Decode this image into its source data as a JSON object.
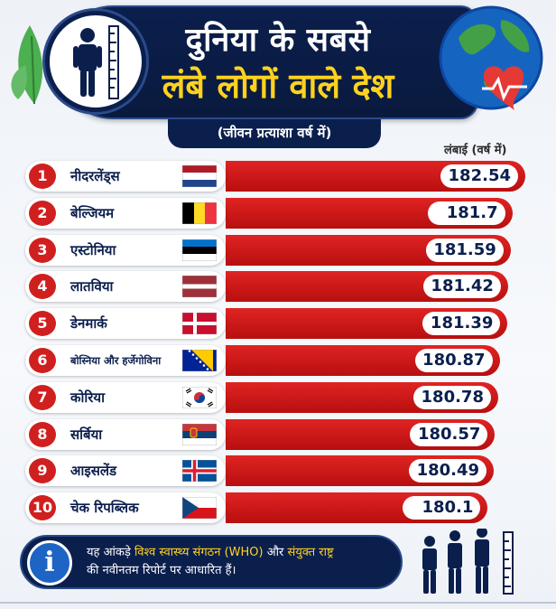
{
  "header": {
    "title_line1": "दुनिया के सबसे",
    "title_line2": "लंबे लोगों वाले देश",
    "subtitle": "(जीवन प्रत्याशा वर्ष में)",
    "column_label": "लंबाई (वर्ष में)"
  },
  "chart_data": {
    "type": "bar",
    "orientation": "horizontal",
    "categories": [
      "नीदरलेंड्स",
      "बेल्जियम",
      "एस्टोनिया",
      "लातविया",
      "डेनमार्क",
      "बोस्निया और हर्जेगोविना",
      "कोरिया",
      "सर्बिया",
      "आइसलेंड",
      "चेक रिपब्लिक"
    ],
    "ranks": [
      "1",
      "2",
      "3",
      "4",
      "5",
      "6",
      "7",
      "8",
      "9",
      "10"
    ],
    "values": [
      182.54,
      181.7,
      181.59,
      181.42,
      181.39,
      180.87,
      180.78,
      180.57,
      180.49,
      180.1
    ],
    "value_labels": [
      "182.54",
      "181.7",
      "181.59",
      "181.42",
      "181.39",
      "180.87",
      "180.78",
      "180.57",
      "180.49",
      "180.1"
    ],
    "ylabel": "लंबाई (वर्ष में)",
    "bar_color": "#d01f1f"
  },
  "flags": [
    "netherlands-flag-icon",
    "belgium-flag-icon",
    "estonia-flag-icon",
    "latvia-flag-icon",
    "denmark-flag-icon",
    "bosnia-flag-icon",
    "south-korea-flag-icon",
    "serbia-flag-icon",
    "iceland-flag-icon",
    "czech-flag-icon"
  ],
  "footer": {
    "text_a": "यह आंकड़े ",
    "text_highlight1": "विश्व स्वास्थ्य संगठन (WHO)",
    "text_b": " और ",
    "text_highlight2": "संयुक्त राष्ट्र",
    "text_c": "की नवीनतम रिपोर्ट पर आधारित हैं।",
    "info_glyph": "i"
  },
  "colors": {
    "navy": "#0b1f4d",
    "accent_yellow": "#ffd21f",
    "bar_red": "#d01f1f"
  }
}
